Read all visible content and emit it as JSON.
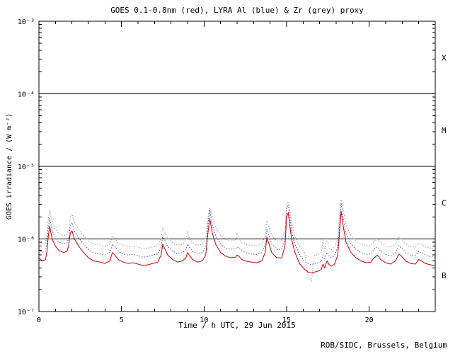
{
  "page": {
    "credit": "ROB/SIDC, Brussels, Belgium",
    "credit_color": "#00008b"
  },
  "chart_data": {
    "type": "line",
    "title": "GOES 0.1-0.8nm (red), LYRA Al (blue) & Zr (grey) proxy",
    "xlabel": "Time / h UTC, 29 Jun 2015",
    "ylabel": "GOES irradiance / (W m⁻²)",
    "xlim": [
      0,
      24
    ],
    "ylim_log10": [
      -7,
      -3
    ],
    "xticks_major": [
      0,
      5,
      10,
      15,
      20
    ],
    "xtick_labels": [
      "0",
      "5",
      "10",
      "15",
      "20"
    ],
    "x_minor_step": 1,
    "ytick_decades": [
      -7,
      -6,
      -5,
      -4,
      -3
    ],
    "ytick_labels": [
      "10⁻⁷",
      "10⁻⁶",
      "10⁻⁵",
      "10⁻⁴",
      "10⁻³"
    ],
    "hlines_log10": [
      -6,
      -5,
      -4
    ],
    "flare_classes": [
      {
        "label": "X",
        "log10_mid": -3.5
      },
      {
        "label": "M",
        "log10_mid": -4.5
      },
      {
        "label": "C",
        "log10_mid": -5.5
      },
      {
        "label": "B",
        "log10_mid": -6.5
      }
    ],
    "grid": false,
    "legend_position": "none (colors named in title)",
    "value_scale": 1e-07,
    "x": [
      0,
      0.2,
      0.4,
      0.5,
      0.55,
      0.65,
      0.8,
      1.0,
      1.2,
      1.5,
      1.7,
      1.8,
      1.9,
      2.0,
      2.15,
      2.4,
      2.7,
      3.0,
      3.3,
      3.7,
      4.0,
      4.3,
      4.45,
      4.6,
      4.8,
      5.1,
      5.4,
      5.7,
      6.0,
      6.3,
      6.6,
      6.9,
      7.2,
      7.4,
      7.5,
      7.6,
      7.8,
      8.1,
      8.4,
      8.7,
      8.9,
      9.0,
      9.1,
      9.3,
      9.6,
      9.9,
      10.1,
      10.25,
      10.35,
      10.5,
      10.7,
      11.0,
      11.3,
      11.6,
      11.9,
      12.0,
      12.1,
      12.3,
      12.6,
      12.9,
      13.2,
      13.5,
      13.7,
      13.8,
      13.9,
      14.1,
      14.4,
      14.7,
      14.9,
      15.0,
      15.1,
      15.3,
      15.5,
      15.8,
      16.1,
      16.3,
      16.5,
      16.7,
      16.9,
      17.1,
      17.2,
      17.3,
      17.45,
      17.55,
      17.7,
      17.9,
      18.1,
      18.2,
      18.3,
      18.45,
      18.6,
      18.9,
      19.2,
      19.5,
      19.8,
      20.1,
      20.3,
      20.5,
      20.7,
      21.0,
      21.3,
      21.6,
      21.8,
      21.95,
      22.2,
      22.5,
      22.8,
      23.0,
      23.15,
      23.4,
      23.7,
      24.0
    ],
    "series": [
      {
        "name": "GOES 0.1-0.8nm",
        "color": "#cc0000",
        "style": "solid",
        "values": [
          5.5,
          5,
          5.2,
          7,
          10,
          15,
          10,
          8,
          7,
          6.5,
          6.8,
          8,
          12,
          13,
          10,
          8,
          6.5,
          5.5,
          5,
          4.8,
          4.6,
          5,
          6.5,
          6,
          5.2,
          4.8,
          4.6,
          4.7,
          4.5,
          4.3,
          4.4,
          4.6,
          4.8,
          6,
          8.5,
          7.5,
          6,
          5.2,
          4.8,
          5,
          5.5,
          6.5,
          6,
          5.2,
          4.8,
          5,
          6,
          13,
          19,
          12,
          8.5,
          6.5,
          5.8,
          5.5,
          5.6,
          6,
          5.8,
          5.2,
          4.9,
          4.8,
          4.7,
          5,
          6.5,
          10.5,
          9,
          6.5,
          5.5,
          5.5,
          8,
          20,
          23,
          10,
          6.5,
          4.5,
          3.8,
          3.5,
          3.4,
          3.5,
          3.6,
          3.8,
          4.5,
          4,
          5,
          4.5,
          4.2,
          4.5,
          6,
          12,
          24,
          14,
          9,
          6.5,
          5.5,
          5,
          4.7,
          4.8,
          5.5,
          6,
          5.2,
          4.7,
          4.5,
          5,
          6.2,
          5.8,
          5,
          4.6,
          4.5,
          5.2,
          5,
          4.6,
          4.4,
          4.3
        ]
      },
      {
        "name": "LYRA Al proxy",
        "color": "#3333cc",
        "style": "dotted",
        "values": [
          7.2,
          6.5,
          6.8,
          9.1,
          13,
          19.5,
          13,
          10.4,
          9.1,
          8.5,
          8.8,
          10.4,
          15.6,
          16.9,
          13,
          10.4,
          8.5,
          7.2,
          6.5,
          6.2,
          6,
          6.5,
          8.5,
          7.8,
          6.8,
          6.2,
          6,
          6.1,
          5.9,
          5.6,
          5.7,
          6,
          6.2,
          7.8,
          11.1,
          9.8,
          7.8,
          6.8,
          6.2,
          6.5,
          7.2,
          8.5,
          7.8,
          6.8,
          6.2,
          6.5,
          7.8,
          16.9,
          24.7,
          15.6,
          11.1,
          8.5,
          7.5,
          7.2,
          7.3,
          7.8,
          7.5,
          6.8,
          6.4,
          6.2,
          6.1,
          6.5,
          8.5,
          13.7,
          11.7,
          8.5,
          7.2,
          7.2,
          10.4,
          26,
          29.9,
          13,
          8.5,
          5.9,
          4.9,
          4.6,
          4.4,
          4.6,
          4.7,
          4.9,
          5.9,
          5.2,
          6.5,
          5.9,
          5.5,
          5.9,
          7.8,
          15.6,
          31.2,
          18.2,
          11.7,
          8.5,
          7.2,
          6.5,
          6.1,
          6.2,
          7.2,
          7.8,
          6.8,
          6.1,
          5.9,
          6.5,
          8.1,
          7.5,
          6.5,
          6,
          5.9,
          6.8,
          6.5,
          6,
          5.7,
          5.6
        ]
      },
      {
        "name": "LYRA Zr proxy",
        "color": "#909090",
        "style": "dotted",
        "values": [
          9.4,
          8.5,
          8.8,
          11.9,
          17,
          25.5,
          17,
          13.6,
          11.9,
          11.1,
          11.6,
          13.6,
          20.4,
          22.1,
          17,
          13.6,
          11.1,
          9.4,
          8.5,
          8.2,
          7.8,
          8.5,
          11.1,
          10.2,
          8.8,
          8.2,
          7.8,
          8,
          7.7,
          7.3,
          7.5,
          7.8,
          8.2,
          10.2,
          14.5,
          12.8,
          10.2,
          8.8,
          8.2,
          8.5,
          9.4,
          13,
          10.2,
          8.8,
          8.2,
          8.5,
          10.2,
          20,
          27,
          20.4,
          14.5,
          11.1,
          9.9,
          9.4,
          9.5,
          12,
          9.9,
          8.8,
          8.3,
          8.2,
          8,
          8.5,
          11.1,
          17.9,
          15.3,
          11.1,
          9.4,
          9.4,
          13.6,
          30,
          33,
          17,
          11.1,
          7.7,
          6.5,
          3,
          2.6,
          6,
          6.1,
          6.5,
          9.5,
          6.8,
          10.5,
          7.7,
          7.1,
          7.7,
          10.2,
          20.4,
          35,
          23.8,
          15.3,
          11.1,
          9.4,
          8.5,
          8,
          8.2,
          9.4,
          10.2,
          8.8,
          8,
          7.7,
          8.5,
          10.5,
          9.9,
          8.5,
          7.8,
          7.7,
          8.8,
          8.5,
          7.8,
          7.5,
          7.3
        ]
      }
    ]
  }
}
